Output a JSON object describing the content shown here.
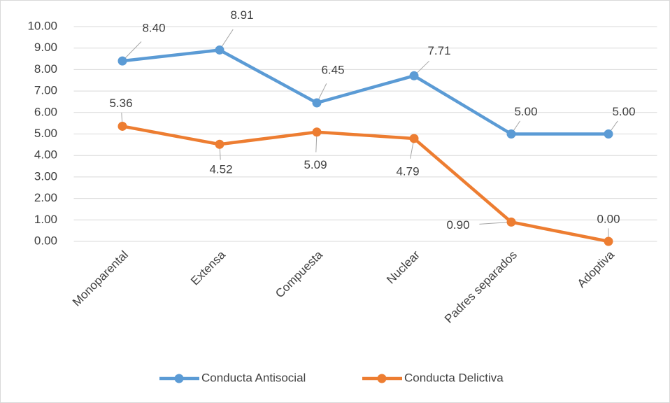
{
  "chart_data": {
    "type": "line",
    "categories": [
      "Monoparental",
      "Extensa",
      "Compuesta",
      "Nuclear",
      "Padres separados",
      "Adoptiva"
    ],
    "series": [
      {
        "name": "Conducta Antisocial",
        "color": "#5b9bd5",
        "values": [
          8.4,
          8.91,
          6.45,
          7.71,
          5,
          5
        ],
        "value_labels": [
          "8.40",
          "8.91",
          "6.45",
          "7.71",
          "5.00",
          "5.00"
        ]
      },
      {
        "name": "Conducta Delictiva",
        "color": "#ed7d31",
        "values": [
          5.36,
          4.52,
          5.09,
          4.79,
          0.9,
          0
        ],
        "value_labels": [
          "5.36",
          "4.52",
          "5.09",
          "4.79",
          "0.90",
          "0.00"
        ]
      }
    ],
    "ylim": [
      0,
      10
    ],
    "yticks": [
      {
        "value": 0,
        "label": "0.00"
      },
      {
        "value": 1,
        "label": "1.00"
      },
      {
        "value": 2,
        "label": "2.00"
      },
      {
        "value": 3,
        "label": "3.00"
      },
      {
        "value": 4,
        "label": "4.00"
      },
      {
        "value": 5,
        "label": "5.00"
      },
      {
        "value": 6,
        "label": "6.00"
      },
      {
        "value": 7,
        "label": "7.00"
      },
      {
        "value": 8,
        "label": "8.00"
      },
      {
        "value": 9,
        "label": "9.00"
      },
      {
        "value": 10,
        "label": "10.00"
      }
    ],
    "grid": true,
    "legend": "bottom"
  }
}
